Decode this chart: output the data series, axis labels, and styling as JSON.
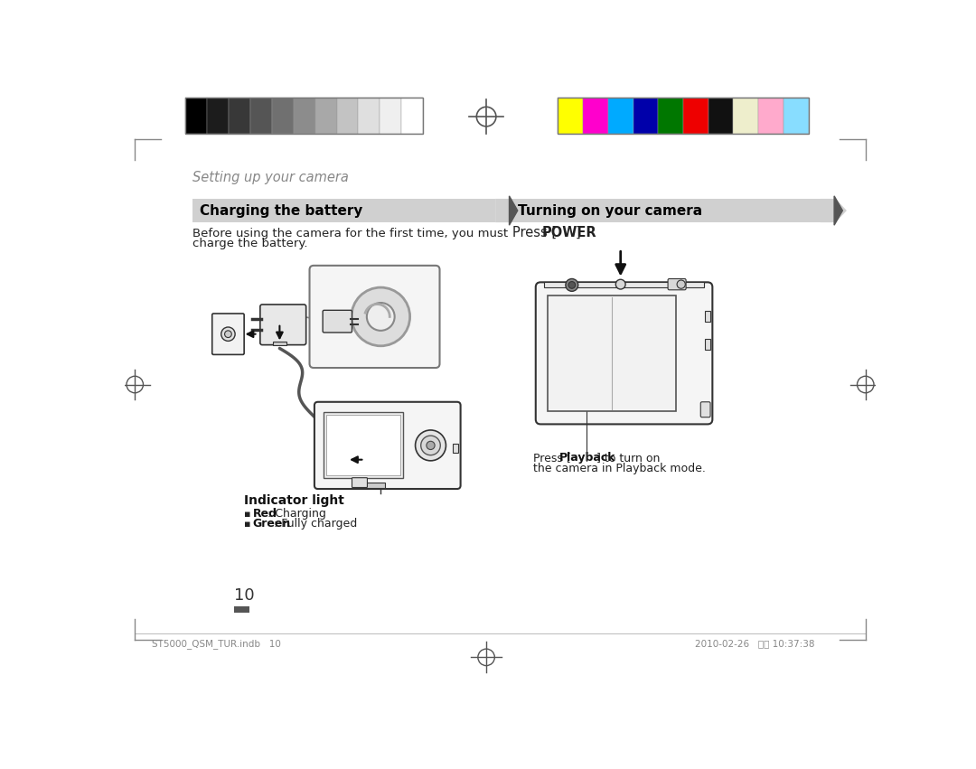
{
  "bg_color": "#ffffff",
  "section_title": "Setting up your camera",
  "section_title_color": "#888888",
  "header1_text": "Charging the battery",
  "header2_text": "Turning on your camera",
  "header_bg": "#c8c8c8",
  "header_text_color": "#000000",
  "body1_line1": "Before using the camera for the first time, you must",
  "body1_line2": "charge the battery.",
  "body2_text": "Press [POWER].",
  "indicator_title": "Indicator light",
  "page_number": "10",
  "footer_left": "ST5000_QSM_TUR.indb   10",
  "footer_right": "2010-02-26   오전 10:37:38",
  "color_strip_grays": [
    "#000000",
    "#1c1c1c",
    "#383838",
    "#555555",
    "#707070",
    "#8c8c8c",
    "#a8a8a8",
    "#c3c3c3",
    "#dfdfdf",
    "#efefef",
    "#ffffff"
  ],
  "color_strip_colors": [
    "#ffff00",
    "#ff00cc",
    "#00aaff",
    "#0000aa",
    "#007700",
    "#ee0000",
    "#111111",
    "#eeeecc",
    "#ffaacc",
    "#88ddff"
  ],
  "gray_lw": 0.5,
  "line_color": "#333333",
  "light_line": "#888888"
}
